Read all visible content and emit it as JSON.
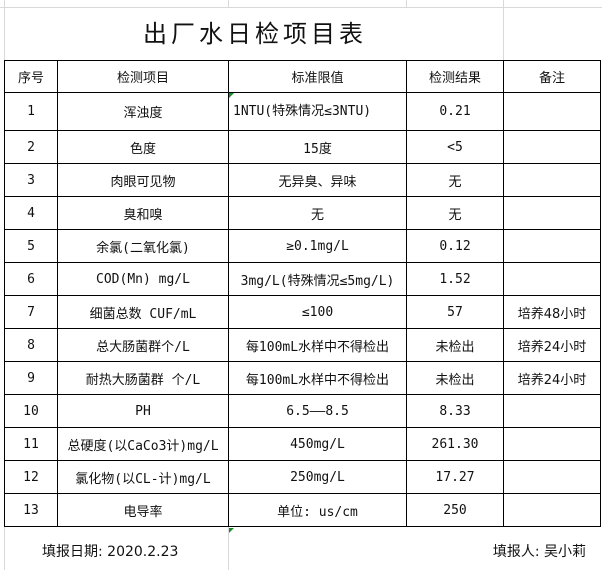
{
  "title": "出厂水日检项目表",
  "headers": [
    "序号",
    "检测项目",
    "标准限值",
    "检测结果",
    "备注"
  ],
  "rows": [
    [
      "1",
      "浑浊度",
      "1NTU(特殊情况≤3NTU)",
      "0.21",
      ""
    ],
    [
      "2",
      "色度",
      "15度",
      "<5",
      ""
    ],
    [
      "3",
      "肉眼可见物",
      "无异臭、异味",
      "无",
      ""
    ],
    [
      "4",
      "臭和嗅",
      "无",
      "无",
      ""
    ],
    [
      "5",
      "余氯(二氧化氯)",
      "≥0.1mg/L",
      "0.12",
      ""
    ],
    [
      "6",
      "COD(Mn)  mg/L",
      "3mg/L(特殊情况≤5mg/L)",
      "1.52",
      ""
    ],
    [
      "7",
      "细菌总数 CUF/mL",
      "≤100",
      "57",
      "培养48小时"
    ],
    [
      "8",
      "总大肠菌群个/L",
      "每100mL水样中不得检出",
      "未检出",
      "培养24小时"
    ],
    [
      "9",
      "耐热大肠菌群 个/L",
      "每100mL水样中不得检出",
      "未检出",
      "培养24小时"
    ],
    [
      "10",
      "PH",
      "6.5——8.5",
      "8.33",
      ""
    ],
    [
      "11",
      "总硬度(以CaCo3计)mg/L",
      "450mg/L",
      "261.30",
      ""
    ],
    [
      "12",
      "氯化物(以CL-计)mg/L",
      "250mg/L",
      "17.27",
      ""
    ],
    [
      "13",
      "电导率",
      "单位: us/cm",
      "250",
      ""
    ]
  ],
  "footer": {
    "date": "填报日期: 2020.2.23",
    "reporter": "填报人: 吴小莉"
  }
}
